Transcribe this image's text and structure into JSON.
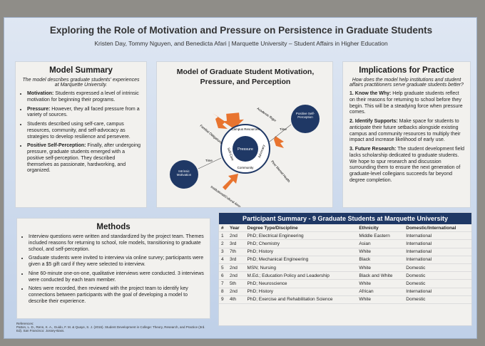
{
  "header": {
    "title": "Exploring the Role of Motivation and Pressure on Persistence in Graduate Students",
    "authors": "Kristen Day, Tommy Nguyen, and Benedicta Afari | Marquette University – Student Affairs in Higher Education"
  },
  "model_summary": {
    "heading": "Model Summary",
    "intro": "The model describes graduate students' experiences at Marquette University.",
    "items": [
      {
        "label": "Motivation:",
        "text": "Students expressed a level of intrinsic motivation for beginning their programs."
      },
      {
        "label": "Pressure:",
        "text": "However, they all faced pressure from a variety of sources."
      },
      {
        "text": "Students described using self-care, campus resources, community, and self-advocacy as strategies to develop resilience and persevere."
      },
      {
        "label": "Positive Self-Perception:",
        "text": "Finally, after undergoing pressure, graduate students emerged with a positive self-perception. They described themselves as passionate, hardworking, and organized."
      }
    ]
  },
  "diagram": {
    "title": "Model of Graduate Student Motivation, Pressure, and Perception",
    "center": "Pressure",
    "self_perception": "Positive Self-Perception",
    "motivation": "Intrinsic Motivation",
    "ring": [
      "Campus Resources",
      "Self-Care",
      "Community",
      "Advocacy"
    ],
    "pressures": [
      "Academic Rigor",
      "Familial Obligations",
      "Peer Mental Health",
      "Institutional/Cultural Aims"
    ],
    "time": "Time"
  },
  "implications": {
    "heading": "Implications for Practice",
    "question": "How does the model help institutions and student affairs practitioners serve graduate students better?",
    "items": [
      {
        "label": "1. Know the Why:",
        "text": "Help graduate students reflect on their reasons for returning to school before they begin. This will be a steadying force when pressure comes."
      },
      {
        "label": "2. Identify Supports:",
        "text": "Make space for students to anticipate their future setbacks alongside existing campus and community resources to multiply their impact and increase likelihood of early use."
      },
      {
        "label": "3. Future Research:",
        "text": "The student development field lacks scholarship dedicated to graduate students. We hope to spur research and discussion surrounding them to ensure the next generation of graduate-level collegians succeeds far beyond degree completion."
      }
    ]
  },
  "methods": {
    "heading": "Methods",
    "items": [
      "Interview questions were written and standardized by the project team. Themes included reasons for returning to school, role models, transitioning to graduate school, and self-perception.",
      "Graduate students were invited to interview via online survey; participants were given a $5 gift card if they were selected to interview.",
      "Nine 60-minute one-on-one, qualitative interviews were conducted. 3 interviews were conducted by each team member.",
      "Notes were recorded, then reviewed with the project team to identify key connections between participants with the goal of developing a model to describe their experience."
    ]
  },
  "participants": {
    "title": "Participant Summary - 9 Graduate Students at Marquette University",
    "columns": [
      "#",
      "Year",
      "Degree Type/Discipline",
      "Ethnicity",
      "Domestic/International"
    ],
    "rows": [
      [
        "1",
        "2nd",
        "PhD; Electrical Engineering",
        "Middle Eastern",
        "International"
      ],
      [
        "2",
        "3rd",
        "PhD; Chemistry",
        "Asian",
        "International"
      ],
      [
        "3",
        "7th",
        "PhD; History",
        "White",
        "International"
      ],
      [
        "4",
        "3rd",
        "PhD; Mechanical Engineering",
        "Black",
        "International"
      ],
      [
        "5",
        "2nd",
        "MSN; Nursing",
        "White",
        "Domestic"
      ],
      [
        "6",
        "2nd",
        "M.Ed.; Education Policy and Leadership",
        "Black and White",
        "Domestic"
      ],
      [
        "7",
        "5th",
        "PhD; Neuroscience",
        "White",
        "Domestic"
      ],
      [
        "8",
        "2nd",
        "PhD; History",
        "African",
        "International"
      ],
      [
        "9",
        "4th",
        "PhD; Exercise and Rehabilitation Science",
        "White",
        "Domestic"
      ]
    ]
  },
  "references": {
    "heading": "References:",
    "text": "Patton, L. D., Renn, K. A., Guido, F. M. & Quaye, S. J. (2016). Student Development in College: Theory, Research, and Practice (3rd. Ed). San Francisco: Jossey-Bass."
  }
}
